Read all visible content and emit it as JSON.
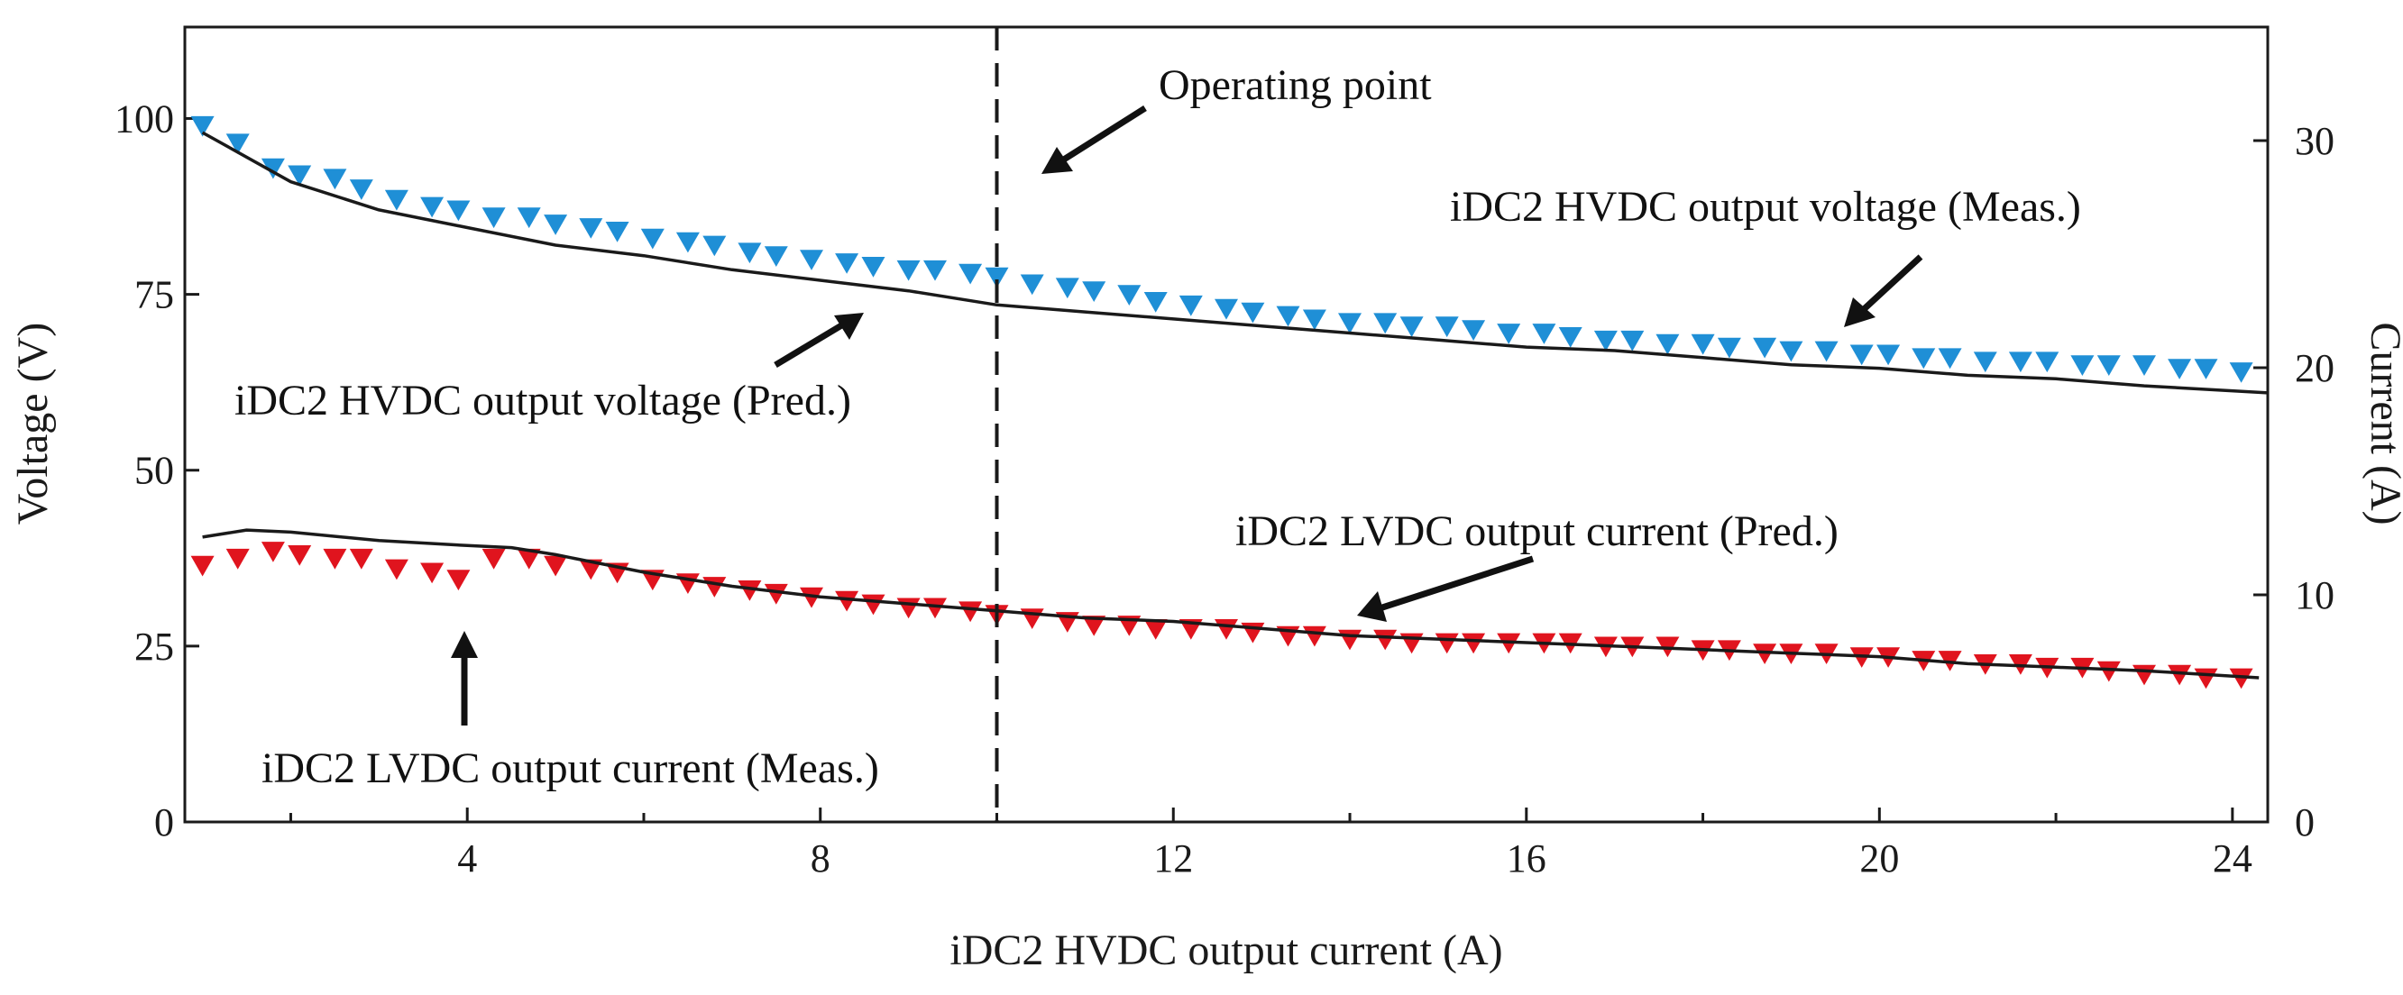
{
  "chart_data": {
    "type": "scatter",
    "title": "",
    "xlabel": "iDC2 HVDC output current (A)",
    "ylabel": "Voltage (V)",
    "ylabel_right": "Current (A)",
    "xlim": [
      0.8,
      24.4
    ],
    "ylim": [
      0,
      113
    ],
    "ylim_right": [
      0,
      35
    ],
    "x_ticks": [
      "4",
      "8",
      "12",
      "16",
      "20",
      "24"
    ],
    "y_ticks": [
      "0",
      "25",
      "50",
      "75",
      "100"
    ],
    "y_ticks_right": [
      "0",
      "10",
      "20",
      "30"
    ],
    "vline": {
      "x": 10,
      "label": "Operating point"
    },
    "series": [
      {
        "name": "iDC2 HVDC output voltage (Meas.)",
        "axis": "left",
        "marker": "triangle-down",
        "color": "#1f8fd6",
        "x": [
          1.0,
          1.4,
          1.8,
          2.1,
          2.5,
          2.8,
          3.2,
          3.6,
          3.9,
          4.3,
          4.7,
          5.0,
          5.4,
          5.7,
          6.1,
          6.5,
          6.8,
          7.2,
          7.5,
          7.9,
          8.3,
          8.6,
          9.0,
          9.3,
          9.7,
          10.0,
          10.4,
          10.8,
          11.1,
          11.5,
          11.8,
          12.2,
          12.6,
          12.9,
          13.3,
          13.6,
          14.0,
          14.4,
          14.7,
          15.1,
          15.4,
          15.8,
          16.2,
          16.5,
          16.9,
          17.2,
          17.6,
          18.0,
          18.3,
          18.7,
          19.0,
          19.4,
          19.8,
          20.1,
          20.5,
          20.8,
          21.2,
          21.6,
          21.9,
          22.3,
          22.6,
          23.0,
          23.4,
          23.7,
          24.1
        ],
        "values": [
          99.0,
          96.5,
          93.0,
          92.0,
          91.5,
          90.0,
          88.5,
          87.5,
          87.0,
          86.0,
          86.0,
          85.0,
          84.5,
          84.0,
          83.0,
          82.5,
          82.0,
          81.0,
          80.5,
          80.0,
          79.5,
          79.0,
          78.5,
          78.5,
          78.0,
          77.5,
          76.5,
          76.0,
          75.5,
          75.0,
          74.0,
          73.5,
          73.0,
          72.5,
          72.0,
          71.5,
          71.0,
          71.0,
          70.5,
          70.5,
          70.0,
          69.5,
          69.5,
          69.0,
          68.5,
          68.5,
          68.0,
          68.0,
          67.5,
          67.5,
          67.0,
          67.0,
          66.5,
          66.5,
          66.0,
          66.0,
          65.5,
          65.5,
          65.5,
          65.0,
          65.0,
          65.0,
          64.5,
          64.5,
          64.0
        ]
      },
      {
        "name": "iDC2 HVDC output voltage (Pred.)",
        "axis": "left",
        "marker": "line",
        "color": "#1a1a1a",
        "x": [
          1,
          2,
          3,
          4,
          5,
          6,
          7,
          8,
          9,
          10,
          11,
          12,
          13,
          14,
          15,
          16,
          17,
          18,
          19,
          20,
          21,
          22,
          23,
          24.4
        ],
        "values": [
          98,
          91,
          87,
          84.5,
          82,
          80.5,
          78.5,
          77,
          75.5,
          73.5,
          72.5,
          71.5,
          70.5,
          69.5,
          68.5,
          67.5,
          67,
          66,
          65,
          64.5,
          63.5,
          63,
          62,
          61
        ]
      },
      {
        "name": "iDC2 LVDC output current (Meas.)",
        "axis": "left",
        "marker": "triangle-down",
        "color": "#e0141e",
        "x": [
          1.0,
          1.4,
          1.8,
          2.1,
          2.5,
          2.8,
          3.2,
          3.6,
          3.9,
          4.3,
          4.7,
          5.0,
          5.4,
          5.7,
          6.1,
          6.5,
          6.8,
          7.2,
          7.5,
          7.9,
          8.3,
          8.6,
          9.0,
          9.3,
          9.7,
          10.0,
          10.4,
          10.8,
          11.1,
          11.5,
          11.8,
          12.2,
          12.6,
          12.9,
          13.3,
          13.6,
          14.0,
          14.4,
          14.7,
          15.1,
          15.4,
          15.8,
          16.2,
          16.5,
          16.9,
          17.2,
          17.6,
          18.0,
          18.3,
          18.7,
          19.0,
          19.4,
          19.8,
          20.1,
          20.5,
          20.8,
          21.2,
          21.6,
          21.9,
          22.3,
          22.6,
          23.0,
          23.4,
          23.7,
          24.1
        ],
        "values": [
          36.5,
          37.5,
          38.5,
          38.0,
          37.5,
          37.5,
          36.0,
          35.5,
          34.5,
          37.5,
          37.5,
          36.5,
          36.0,
          35.5,
          34.5,
          34.0,
          33.5,
          33.0,
          32.5,
          32.0,
          31.5,
          31.0,
          30.5,
          30.5,
          30.0,
          29.5,
          29.0,
          28.5,
          28.0,
          28.0,
          27.5,
          27.5,
          27.5,
          27.0,
          26.5,
          26.5,
          26.0,
          26.0,
          25.5,
          25.5,
          25.5,
          25.5,
          25.5,
          25.5,
          25.0,
          25.0,
          25.0,
          24.5,
          24.5,
          24.0,
          24.0,
          24.0,
          23.5,
          23.5,
          23.0,
          23.0,
          22.5,
          22.5,
          22.0,
          22.0,
          21.5,
          21.0,
          21.0,
          20.5,
          20.5
        ]
      },
      {
        "name": "iDC2 LVDC output current (Pred.)",
        "axis": "left",
        "marker": "line",
        "color": "#1a1a1a",
        "x": [
          1,
          1.5,
          2,
          3,
          4,
          4.5,
          5,
          6,
          7,
          8,
          9,
          10,
          11,
          12,
          13,
          14,
          15,
          16,
          17,
          18,
          19,
          20,
          21,
          22,
          23,
          24.3
        ],
        "values": [
          40.5,
          41.5,
          41.2,
          40,
          39.3,
          39,
          38,
          35.5,
          33.5,
          32,
          31,
          30,
          29,
          28.5,
          27.5,
          26.5,
          26,
          25.5,
          25,
          24.5,
          24,
          23.5,
          22.5,
          22,
          21.5,
          20.5
        ]
      }
    ],
    "annotations": [
      {
        "text": "Operating point"
      },
      {
        "text": "iDC2 HVDC output voltage (Meas.)"
      },
      {
        "text": "iDC2 HVDC output voltage (Pred.)"
      },
      {
        "text": "iDC2 LVDC output current (Pred.)"
      },
      {
        "text": "iDC2 LVDC output current (Meas.)"
      }
    ]
  }
}
